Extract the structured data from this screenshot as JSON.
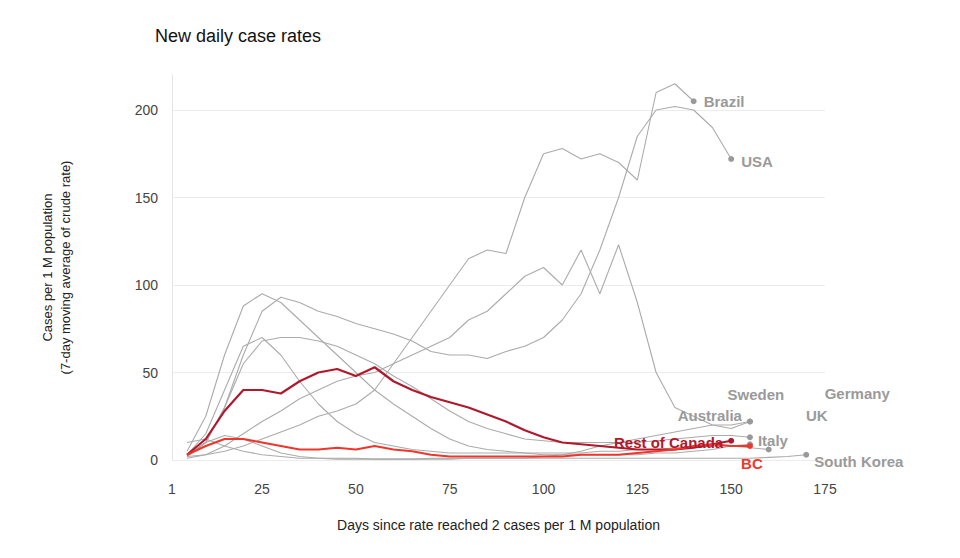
{
  "chart_data": {
    "type": "line",
    "title": "New daily case rates",
    "xlabel": "Days since rate reached 2 cases per 1 M population",
    "ylabel": "Cases per 1 M population\n(7-day moving average of crude rate)",
    "xlim": [
      1,
      175
    ],
    "xticks": [
      1,
      25,
      50,
      75,
      100,
      125,
      150,
      175
    ],
    "ylim": [
      0,
      220
    ],
    "yticks": [
      0,
      50,
      100,
      150,
      200
    ],
    "grid": true,
    "x": [
      5,
      10,
      15,
      20,
      25,
      30,
      35,
      40,
      45,
      50,
      55,
      60,
      65,
      70,
      75,
      80,
      85,
      90,
      95,
      100,
      105,
      110,
      115,
      120,
      125,
      130,
      135,
      140,
      145,
      150,
      155,
      160,
      165,
      170
    ],
    "series": [
      {
        "name": "Brazil",
        "color": "#ababab",
        "values": [
          2,
          3,
          5,
          8,
          12,
          16,
          20,
          25,
          28,
          32,
          40,
          55,
          70,
          85,
          100,
          115,
          120,
          118,
          150,
          175,
          178,
          172,
          175,
          170,
          160,
          210,
          215,
          205,
          null,
          null,
          null,
          null,
          null,
          null
        ]
      },
      {
        "name": "USA",
        "color": "#ababab",
        "values": [
          2,
          10,
          30,
          60,
          85,
          93,
          90,
          85,
          82,
          78,
          75,
          72,
          68,
          62,
          60,
          60,
          58,
          62,
          65,
          70,
          80,
          95,
          120,
          150,
          185,
          200,
          202,
          200,
          190,
          172,
          null,
          null,
          null,
          null
        ]
      },
      {
        "name": "Sweden",
        "color": "#ababab",
        "values": [
          1,
          3,
          8,
          15,
          22,
          28,
          35,
          40,
          45,
          48,
          50,
          55,
          60,
          65,
          70,
          80,
          85,
          95,
          105,
          110,
          100,
          120,
          95,
          123,
          90,
          50,
          30,
          25,
          20,
          18,
          22,
          null,
          null,
          null
        ]
      },
      {
        "name": "Germany",
        "color": "#ababab",
        "values": [
          3,
          15,
          40,
          65,
          70,
          60,
          45,
          32,
          22,
          15,
          10,
          8,
          6,
          5,
          4,
          4,
          4,
          4,
          4,
          4,
          4,
          4,
          5,
          5,
          6,
          6,
          7,
          7,
          8,
          8,
          7,
          6,
          null,
          null
        ]
      },
      {
        "name": "UK",
        "color": "#ababab",
        "values": [
          2,
          10,
          30,
          55,
          68,
          70,
          70,
          68,
          65,
          60,
          55,
          48,
          42,
          35,
          28,
          22,
          18,
          15,
          12,
          11,
          10,
          10,
          10,
          10,
          10,
          11,
          12,
          13,
          14,
          14,
          13,
          null,
          null,
          null
        ]
      },
      {
        "name": "Australia",
        "color": "#ababab",
        "values": [
          3,
          10,
          14,
          12,
          8,
          4,
          2,
          1,
          1,
          1,
          0.5,
          0.5,
          0.5,
          0.5,
          0.5,
          1,
          1,
          1,
          1,
          2,
          3,
          5,
          8,
          10,
          12,
          14,
          16,
          18,
          20,
          20,
          22,
          null,
          null,
          null
        ]
      },
      {
        "name": "Italy",
        "color": "#ababab",
        "values": [
          5,
          25,
          60,
          88,
          95,
          90,
          80,
          70,
          60,
          50,
          40,
          32,
          25,
          18,
          12,
          8,
          6,
          5,
          4,
          3,
          3,
          3,
          3,
          3,
          3,
          4,
          4,
          5,
          6,
          8,
          9,
          null,
          null,
          null
        ]
      },
      {
        "name": "South Korea",
        "color": "#ababab",
        "values": [
          10,
          12,
          8,
          5,
          3,
          2,
          1,
          1,
          0.5,
          0.5,
          0.5,
          0.5,
          0.5,
          1,
          1,
          1,
          1,
          1,
          1,
          1,
          1,
          1,
          1,
          1,
          1,
          1,
          1,
          1,
          1,
          1,
          1,
          1.5,
          2,
          3
        ]
      },
      {
        "name": "Rest of Canada",
        "color": "#b2182b",
        "values": [
          3,
          12,
          28,
          40,
          40,
          38,
          45,
          50,
          52,
          48,
          53,
          45,
          40,
          36,
          33,
          30,
          26,
          22,
          17,
          13,
          10,
          9,
          8,
          7,
          6,
          6,
          6,
          7,
          9,
          11,
          null,
          null,
          null,
          null
        ]
      },
      {
        "name": "BC",
        "color": "#f0362b",
        "values": [
          3,
          8,
          12,
          12,
          10,
          8,
          6,
          6,
          7,
          6,
          8,
          6,
          5,
          3,
          2,
          2,
          2,
          2,
          2,
          2,
          2,
          3,
          3,
          3,
          4,
          5,
          6,
          8,
          9,
          8,
          8,
          null,
          null,
          null
        ]
      }
    ]
  }
}
